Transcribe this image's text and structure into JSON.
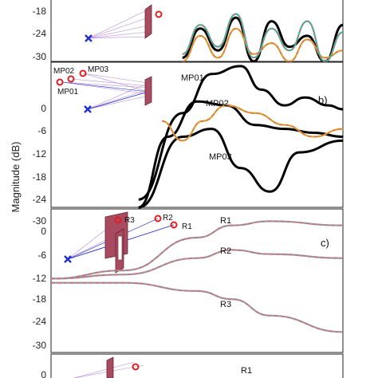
{
  "figure": {
    "ylabel": "Magnitude (dB)"
  },
  "chart_data": [
    {
      "type": "line",
      "panel": "a",
      "visible": "bottom portion only",
      "yticks": [
        "-18",
        "-24",
        "-30"
      ],
      "ylim": [
        -31,
        -12
      ],
      "series": [
        {
          "color": "#000000",
          "values": [
            -30,
            -22,
            -28,
            -19,
            -31,
            -20,
            -27,
            -24,
            -31,
            -21
          ]
        },
        {
          "color": "#d9a521",
          "values": [
            -31,
            -24,
            -30,
            -22,
            -29,
            -26,
            -31,
            -25,
            -30,
            -28
          ]
        },
        {
          "color": "#3db89a",
          "values": [
            -29,
            -21,
            -27,
            -18,
            -30,
            -22,
            -28,
            -20,
            -31,
            -23
          ]
        }
      ]
    },
    {
      "type": "line",
      "panel": "b",
      "letter": "b)",
      "yticks": [
        "0",
        "-6",
        "-12",
        "-18",
        "-24",
        "-30"
      ],
      "ylim": [
        -32,
        5
      ],
      "annotations": [
        "MP01",
        "MP02",
        "MP03"
      ],
      "inset_labels": [
        "MP02",
        "MP03",
        "MP01"
      ],
      "series": [
        {
          "label": "MP01",
          "color": "#000000",
          "x": [
            0.3,
            0.45,
            0.55,
            0.65,
            0.72,
            0.8,
            0.87,
            0.95,
            1.0
          ],
          "values": [
            -30,
            -8,
            2,
            4,
            -2,
            -6,
            -4,
            -6,
            -7
          ]
        },
        {
          "label": "MP02",
          "color": "#000000",
          "x": [
            0.3,
            0.4,
            0.5,
            0.6,
            0.7,
            0.8,
            0.9,
            1.0
          ],
          "values": [
            -32,
            -14,
            -5,
            -6,
            -11,
            -12,
            -13,
            -14
          ]
        },
        {
          "label": "MP03",
          "color": "#000000",
          "x": [
            0.3,
            0.45,
            0.55,
            0.65,
            0.75,
            0.85,
            1.0
          ],
          "values": [
            -32,
            -14,
            -12,
            -22,
            -28,
            -18,
            -15
          ]
        },
        {
          "label": "",
          "color": "#d9a521",
          "x": [
            0.38,
            0.45,
            0.52,
            0.6,
            0.7,
            0.8,
            0.9,
            1.0
          ],
          "values": [
            -10,
            -15,
            -10,
            -6,
            -8,
            -11,
            -14,
            -12
          ]
        }
      ]
    },
    {
      "type": "line",
      "panel": "c",
      "letter": "c)",
      "yticks": [
        "0",
        "-6",
        "-12",
        "-18",
        "-24",
        "-30"
      ],
      "ylim": [
        -31,
        4
      ],
      "annotations": [
        "R1",
        "R2",
        "R3"
      ],
      "inset_labels": [
        "R3",
        "R2",
        "R1"
      ],
      "series": [
        {
          "label": "R1",
          "color": "#9a9a9a",
          "x": [
            0.0,
            0.25,
            0.5,
            0.62,
            0.75,
            1.0
          ],
          "values": [
            -13,
            -11,
            -3,
            0,
            1,
            0
          ]
        },
        {
          "label": "R2",
          "color": "#9a9a9a",
          "x": [
            0.0,
            0.25,
            0.5,
            0.62,
            0.75,
            1.0
          ],
          "values": [
            -13,
            -12,
            -8,
            -6,
            -7,
            -8
          ]
        },
        {
          "label": "R3",
          "color": "#9a9a9a",
          "x": [
            0.0,
            0.25,
            0.5,
            0.62,
            0.75,
            1.0
          ],
          "values": [
            -14,
            -14,
            -16,
            -18,
            -22,
            -26
          ]
        }
      ]
    },
    {
      "type": "line",
      "panel": "d",
      "visible": "top portion only",
      "yticks": [
        "0"
      ],
      "annotations": [
        "R1"
      ],
      "ylim": [
        -4,
        2
      ]
    }
  ]
}
